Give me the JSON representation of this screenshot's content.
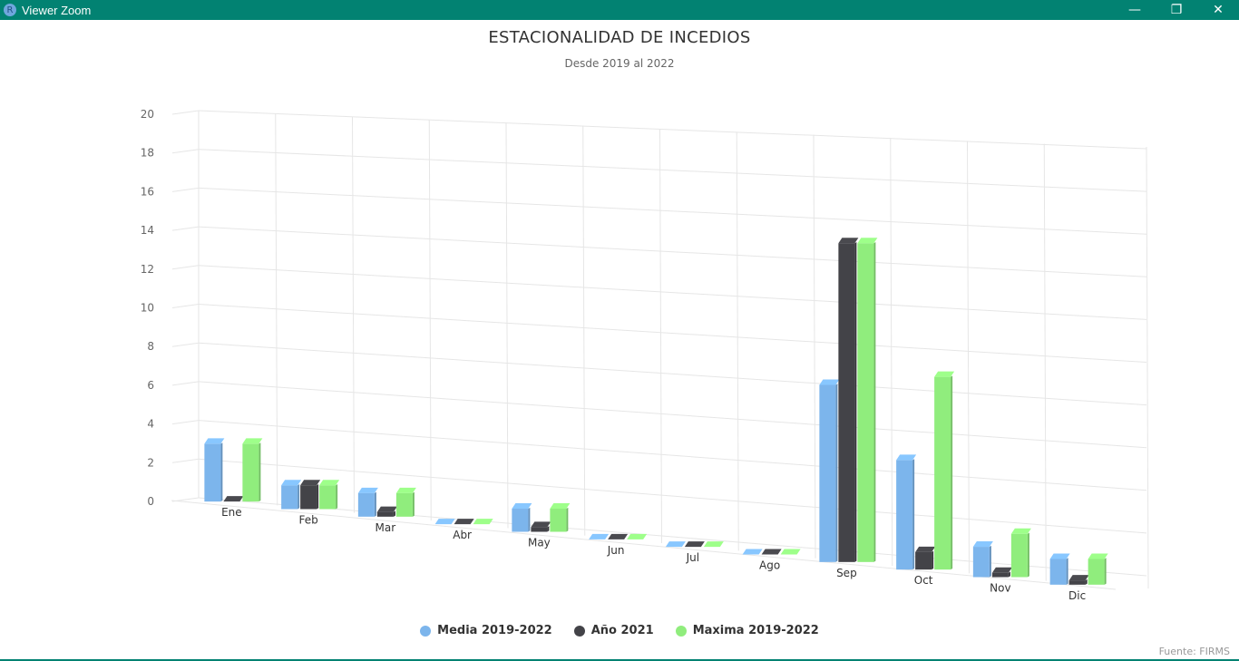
{
  "window": {
    "title": "Viewer Zoom",
    "icon_letter": "R",
    "controls": {
      "minimize": "—",
      "restore": "❐",
      "close": "✕"
    }
  },
  "chart": {
    "title": "ESTACIONALIDAD DE INCEDIOS",
    "subtitle": "Desde 2019 al 2022",
    "credits": "Fuente: FIRMS"
  },
  "colors": {
    "Media 2019-2022": "#7cb5ec",
    "Año 2021": "#434348",
    "Maxima 2019-2022": "#90ed7d"
  },
  "chart_data": {
    "type": "bar",
    "categories": [
      "Ene",
      "Feb",
      "Mar",
      "Abr",
      "May",
      "Jun",
      "Jul",
      "Ago",
      "Sep",
      "Oct",
      "Nov",
      "Dic"
    ],
    "series": [
      {
        "name": "Media 2019-2022",
        "values": [
          3,
          1.25,
          1.25,
          0,
          1.25,
          0,
          0,
          0,
          10,
          6.25,
          1.75,
          1.5
        ]
      },
      {
        "name": "Año 2021",
        "values": [
          0,
          1.25,
          0.25,
          0,
          0.25,
          0,
          0,
          0,
          18,
          1,
          0.25,
          0.25
        ]
      },
      {
        "name": "Maxima 2019-2022",
        "values": [
          3,
          1.25,
          1.25,
          0,
          1.25,
          0,
          0,
          0,
          18,
          11,
          2.5,
          1.5
        ]
      }
    ],
    "yticks": [
      0,
      2,
      4,
      6,
      8,
      10,
      12,
      14,
      16,
      18,
      20
    ],
    "ylim": [
      0,
      20
    ],
    "legend_position": "bottom",
    "grid": true,
    "style": "3d-column"
  }
}
